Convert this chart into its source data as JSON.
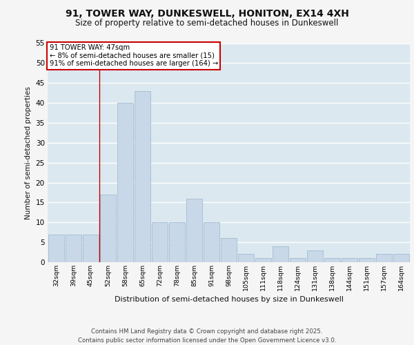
{
  "title1": "91, TOWER WAY, DUNKESWELL, HONITON, EX14 4XH",
  "title2": "Size of property relative to semi-detached houses in Dunkeswell",
  "xlabel": "Distribution of semi-detached houses by size in Dunkeswell",
  "ylabel": "Number of semi-detached properties",
  "categories": [
    "32sqm",
    "39sqm",
    "45sqm",
    "52sqm",
    "58sqm",
    "65sqm",
    "72sqm",
    "78sqm",
    "85sqm",
    "91sqm",
    "98sqm",
    "105sqm",
    "111sqm",
    "118sqm",
    "124sqm",
    "131sqm",
    "138sqm",
    "144sqm",
    "151sqm",
    "157sqm",
    "164sqm"
  ],
  "values": [
    7,
    7,
    7,
    17,
    40,
    43,
    10,
    10,
    16,
    10,
    6,
    2,
    1,
    4,
    1,
    3,
    1,
    1,
    1,
    2,
    2
  ],
  "bar_color": "#c8d8e8",
  "bar_edge_color": "#a0bcd0",
  "annotation_title": "91 TOWER WAY: 47sqm",
  "annotation_line1": "← 8% of semi-detached houses are smaller (15)",
  "annotation_line2": "91% of semi-detached houses are larger (164) →",
  "annotation_box_color": "#ffffff",
  "annotation_box_edge_color": "#cc0000",
  "vline_color": "#cc0000",
  "background_color": "#dce8f0",
  "grid_color": "#ffffff",
  "fig_background": "#f5f5f5",
  "ylim": [
    0,
    55
  ],
  "yticks": [
    0,
    5,
    10,
    15,
    20,
    25,
    30,
    35,
    40,
    45,
    50,
    55
  ],
  "footer_line1": "Contains HM Land Registry data © Crown copyright and database right 2025.",
  "footer_line2": "Contains public sector information licensed under the Open Government Licence v3.0."
}
